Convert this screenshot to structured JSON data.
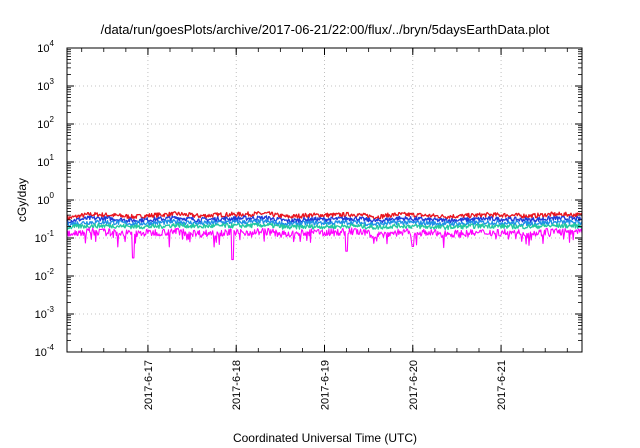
{
  "chart_data": {
    "type": "line",
    "title": "/data/run/goesPlots/archive/2017-06-21/22:00/flux/../bryn/5daysEarthData.plot",
    "xlabel": "Coordinated Universal Time (UTC)",
    "ylabel": "cGy/day",
    "y_scale": "log",
    "ylim": [
      0.0001,
      10000
    ],
    "xlim": [
      "2017-06-16 02:00",
      "2017-06-21 22:00"
    ],
    "grid": true,
    "legend": "none",
    "y_ticks": [
      {
        "mantissa": "10",
        "exponent": "-4",
        "value": 0.0001
      },
      {
        "mantissa": "10",
        "exponent": "-3",
        "value": 0.001
      },
      {
        "mantissa": "10",
        "exponent": "-2",
        "value": 0.01
      },
      {
        "mantissa": "10",
        "exponent": "-1",
        "value": 0.1
      },
      {
        "mantissa": "10",
        "exponent": "0",
        "value": 1
      },
      {
        "mantissa": "10",
        "exponent": "1",
        "value": 10
      },
      {
        "mantissa": "10",
        "exponent": "2",
        "value": 100
      },
      {
        "mantissa": "10",
        "exponent": "3",
        "value": 1000
      },
      {
        "mantissa": "10",
        "exponent": "4",
        "value": 10000
      }
    ],
    "x_ticks": [
      {
        "label": "2017-6-17",
        "time": "2017-06-17 00:00"
      },
      {
        "label": "2017-6-18",
        "time": "2017-06-18 00:00"
      },
      {
        "label": "2017-6-19",
        "time": "2017-06-19 00:00"
      },
      {
        "label": "2017-6-20",
        "time": "2017-06-20 00:00"
      },
      {
        "label": "2017-6-21",
        "time": "2017-06-21 00:00"
      }
    ],
    "x": [
      "2017-06-16 02:00",
      "2017-06-16 08:00",
      "2017-06-16 14:00",
      "2017-06-16 20:00",
      "2017-06-17 02:00",
      "2017-06-17 08:00",
      "2017-06-17 14:00",
      "2017-06-17 20:00",
      "2017-06-18 02:00",
      "2017-06-18 08:00",
      "2017-06-18 14:00",
      "2017-06-18 20:00",
      "2017-06-19 02:00",
      "2017-06-19 08:00",
      "2017-06-19 14:00",
      "2017-06-19 20:00",
      "2017-06-20 02:00",
      "2017-06-20 08:00",
      "2017-06-20 14:00",
      "2017-06-20 20:00",
      "2017-06-21 02:00",
      "2017-06-21 08:00",
      "2017-06-21 14:00",
      "2017-06-21 20:00",
      "2017-06-21 22:00"
    ],
    "series": [
      {
        "color": "#e8141e",
        "values": [
          0.33,
          0.42,
          0.4,
          0.36,
          0.4,
          0.43,
          0.38,
          0.41,
          0.42,
          0.44,
          0.36,
          0.4,
          0.4,
          0.42,
          0.36,
          0.42,
          0.4,
          0.37,
          0.38,
          0.41,
          0.4,
          0.38,
          0.42,
          0.41,
          0.4
        ]
      },
      {
        "color": "#1e3cd8",
        "values": [
          0.28,
          0.33,
          0.32,
          0.29,
          0.31,
          0.34,
          0.3,
          0.32,
          0.33,
          0.34,
          0.28,
          0.31,
          0.31,
          0.33,
          0.28,
          0.33,
          0.31,
          0.29,
          0.3,
          0.32,
          0.31,
          0.3,
          0.33,
          0.32,
          0.31
        ]
      },
      {
        "color": "#1e90e8",
        "values": [
          0.23,
          0.26,
          0.26,
          0.24,
          0.25,
          0.27,
          0.24,
          0.26,
          0.26,
          0.27,
          0.23,
          0.25,
          0.25,
          0.26,
          0.23,
          0.26,
          0.25,
          0.24,
          0.24,
          0.26,
          0.25,
          0.24,
          0.26,
          0.26,
          0.25
        ]
      },
      {
        "color": "#22c8a0",
        "values": [
          0.19,
          0.21,
          0.21,
          0.2,
          0.2,
          0.22,
          0.2,
          0.21,
          0.21,
          0.22,
          0.19,
          0.2,
          0.2,
          0.21,
          0.19,
          0.21,
          0.2,
          0.19,
          0.2,
          0.21,
          0.2,
          0.2,
          0.21,
          0.21,
          0.2
        ]
      },
      {
        "color": "#ff00ff",
        "values": [
          0.13,
          0.15,
          0.14,
          0.13,
          0.14,
          0.15,
          0.13,
          0.14,
          0.14,
          0.15,
          0.12,
          0.14,
          0.14,
          0.15,
          0.12,
          0.14,
          0.14,
          0.13,
          0.13,
          0.14,
          0.14,
          0.13,
          0.15,
          0.14,
          0.14
        ]
      }
    ],
    "annotations": [
      {
        "type": "dip",
        "series_index": 4,
        "time": "2017-06-16 20:00",
        "value": 0.03
      },
      {
        "type": "dip",
        "series_index": 4,
        "time": "2017-06-17 23:00",
        "value": 0.027
      },
      {
        "type": "dip",
        "series_index": 4,
        "time": "2017-06-19 06:00",
        "value": 0.045
      },
      {
        "type": "dip",
        "series_index": 4,
        "time": "2017-06-20 00:00",
        "value": 0.06
      }
    ]
  }
}
